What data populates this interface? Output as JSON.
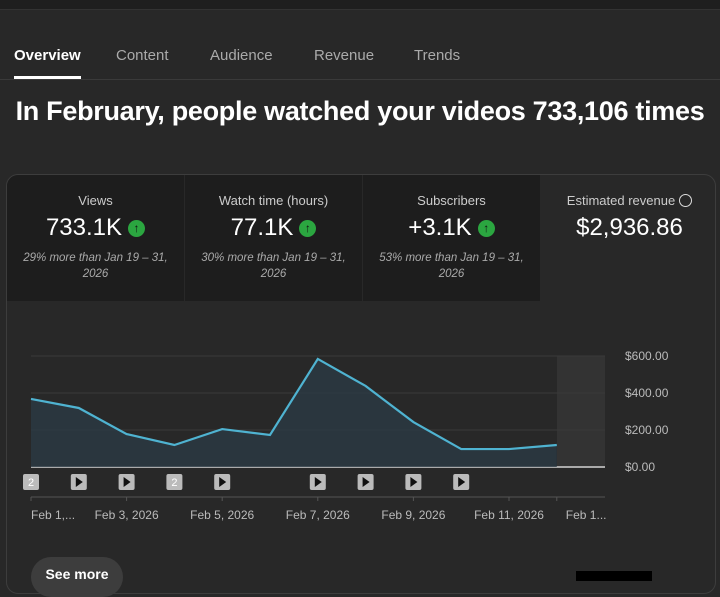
{
  "tabs": [
    {
      "label": "Overview",
      "active": true
    },
    {
      "label": "Content"
    },
    {
      "label": "Audience"
    },
    {
      "label": "Revenue"
    },
    {
      "label": "Trends"
    }
  ],
  "headline": "In February, people watched your videos 733,106 times",
  "metrics": [
    {
      "label": "Views",
      "value": "733.1K",
      "trend": "up",
      "comparison": "29% more than Jan 19 – 31, 2026"
    },
    {
      "label": "Watch time (hours)",
      "value": "77.1K",
      "trend": "up",
      "comparison": "30% more than Jan 19 – 31, 2026"
    },
    {
      "label": "Subscribers",
      "value": "+3.1K",
      "trend": "up",
      "comparison": "53% more than Jan 19 – 31, 2026"
    },
    {
      "label": "Estimated revenue",
      "value": "$2,936.86",
      "icon": "clock-icon"
    }
  ],
  "colors": {
    "line": "#4fb3d1",
    "up": "#2ba640"
  },
  "chart_data": {
    "type": "area",
    "x": [
      "Feb 1",
      "Feb 2",
      "Feb 3",
      "Feb 4",
      "Feb 5",
      "Feb 6",
      "Feb 7",
      "Feb 8",
      "Feb 9",
      "Feb 10",
      "Feb 11",
      "Feb 12"
    ],
    "values": [
      368,
      319,
      178,
      119,
      205,
      173,
      584,
      438,
      243,
      97,
      97,
      119
    ],
    "xtick_labels": [
      "Feb 1,...",
      "Feb 3, 2026",
      "Feb 5, 2026",
      "Feb 7, 2026",
      "Feb 9, 2026",
      "Feb 11, 2026",
      "Feb 1..."
    ],
    "ytick_labels": [
      "$600.00",
      "$400.00",
      "$200.00",
      "$0.00"
    ],
    "yticks": [
      600,
      400,
      200,
      0
    ],
    "ylim": [
      0,
      600
    ],
    "y_axis": "right",
    "grid": true,
    "video_markers": [
      {
        "day": 1,
        "label": "2"
      },
      {
        "day": 2
      },
      {
        "day": 3
      },
      {
        "day": 4,
        "label": "2"
      },
      {
        "day": 5
      },
      {
        "day": 7
      },
      {
        "day": 8
      },
      {
        "day": 9
      },
      {
        "day": 10
      }
    ]
  },
  "see_more": "See more"
}
